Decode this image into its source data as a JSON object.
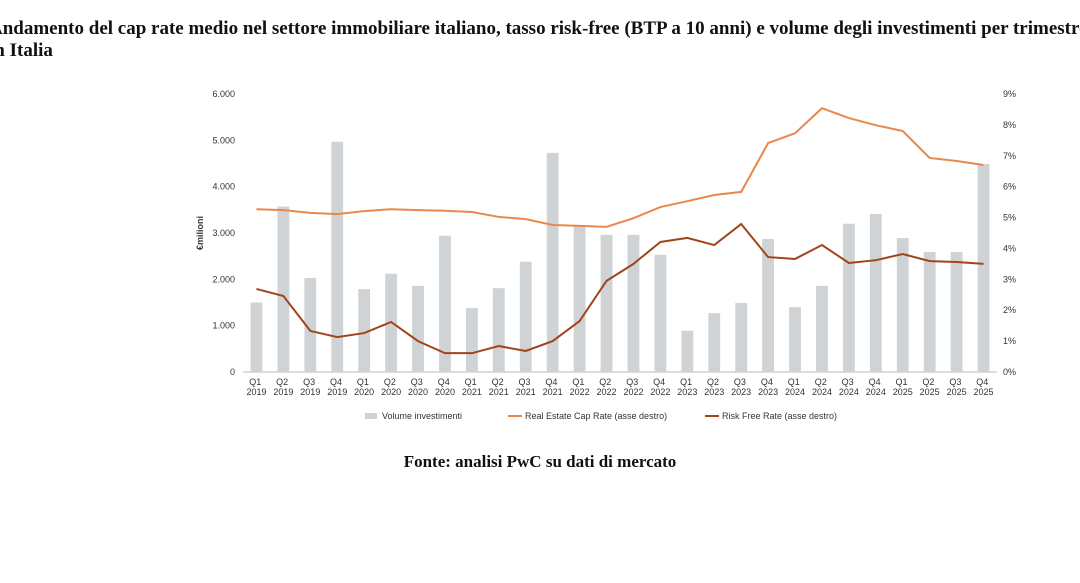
{
  "chart_data": {
    "type": "bar-line",
    "title": "Andamento del cap rate medio nel settore immobiliare italiano, tasso risk-free (BTP a 10 anni) e volume degli investimenti per trimestre in Italia",
    "source": "Fonte: analisi PwC su dati di mercato",
    "y_label": "€milioni",
    "categories": [
      "Q1 2019",
      "Q2 2019",
      "Q3 2019",
      "Q4 2019",
      "Q1 2020",
      "Q2 2020",
      "Q3 2020",
      "Q4 2020",
      "Q1 2021",
      "Q2 2021",
      "Q3 2021",
      "Q4 2021",
      "Q1 2022",
      "Q2 2022",
      "Q3 2022",
      "Q4 2022",
      "Q1 2023",
      "Q2 2023",
      "Q3 2023",
      "Q4 2023",
      "Q1 2024",
      "Q2 2024",
      "Q3 2024",
      "Q4 2024",
      "Q1 2025",
      "Q2 2025",
      "Q3 2025",
      "Q4 2025"
    ],
    "series": [
      {
        "name": "Volume investimenti",
        "kind": "bar",
        "color": "#d0d3d6",
        "values": [
          1500,
          3570,
          2030,
          4970,
          1790,
          2120,
          1860,
          2940,
          1380,
          1810,
          2380,
          4730,
          3150,
          2960,
          2960,
          2530,
          890,
          1270,
          1490,
          2870,
          1400,
          1860,
          3200,
          3410,
          2890,
          2590,
          2590,
          4490
        ]
      },
      {
        "name": "Real Estate Cap Rate (asse destro)",
        "kind": "line",
        "axis": "y2",
        "color": "#e8884a",
        "values": [
          5.27,
          5.24,
          5.15,
          5.11,
          5.21,
          5.27,
          5.24,
          5.22,
          5.18,
          5.02,
          4.95,
          4.76,
          4.73,
          4.7,
          4.98,
          5.34,
          5.53,
          5.73,
          5.83,
          7.41,
          7.73,
          8.54,
          8.22,
          7.99,
          7.8,
          6.93,
          6.83,
          6.7
        ]
      },
      {
        "name": "Risk Free Rate (asse destro)",
        "kind": "line",
        "axis": "y2",
        "color": "#a0441a",
        "values": [
          2.69,
          2.46,
          1.33,
          1.13,
          1.26,
          1.62,
          1.0,
          0.61,
          0.61,
          0.84,
          0.68,
          1.0,
          1.65,
          2.95,
          3.5,
          4.21,
          4.34,
          4.11,
          4.79,
          3.72,
          3.66,
          4.11,
          3.53,
          3.62,
          3.82,
          3.59,
          3.56,
          3.5
        ]
      }
    ],
    "ylim": [
      0,
      6000
    ],
    "yticks": [
      {
        "value": 0,
        "label": "0"
      },
      {
        "value": 1000,
        "label": "1.000"
      },
      {
        "value": 2000,
        "label": "2.000"
      },
      {
        "value": 3000,
        "label": "3.000"
      },
      {
        "value": 4000,
        "label": "4.000"
      },
      {
        "value": 5000,
        "label": "5.000"
      },
      {
        "value": 6000,
        "label": "6.000"
      }
    ],
    "y2lim": [
      0,
      9
    ],
    "y2ticks": [
      {
        "value": 0,
        "label": "0%"
      },
      {
        "value": 1,
        "label": "1%"
      },
      {
        "value": 2,
        "label": "2%"
      },
      {
        "value": 3,
        "label": "3%"
      },
      {
        "value": 4,
        "label": "4%"
      },
      {
        "value": 5,
        "label": "5%"
      },
      {
        "value": 6,
        "label": "6%"
      },
      {
        "value": 7,
        "label": "7%"
      },
      {
        "value": 8,
        "label": "8%"
      },
      {
        "value": 9,
        "label": "9%"
      }
    ],
    "legend": "bottom"
  }
}
